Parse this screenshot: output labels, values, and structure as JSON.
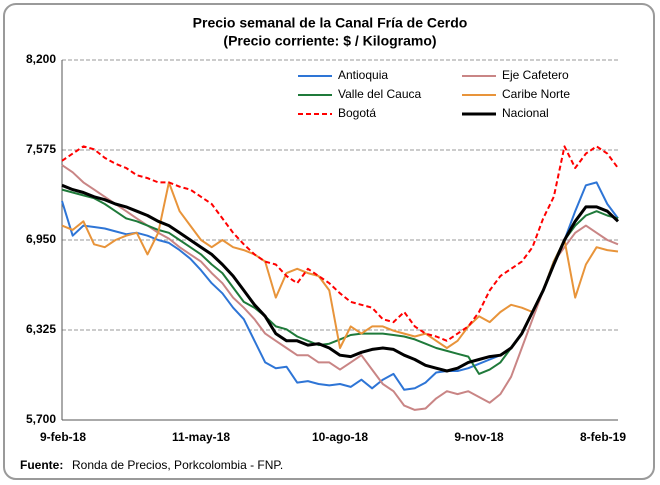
{
  "chart_data": {
    "type": "line",
    "title": "Precio semanal de la Canal Fría de Cerdo",
    "subtitle": "(Precio corriente: $ / Kilogramo)",
    "source_label": "Fuente:",
    "source_text": "Ronda de Precios, Porkcolombia  - FNP.",
    "categories": [
      "9-feb-18",
      null,
      null,
      null,
      null,
      null,
      null,
      null,
      null,
      null,
      null,
      null,
      null,
      "11-may-18",
      null,
      null,
      null,
      null,
      null,
      null,
      null,
      null,
      null,
      null,
      null,
      null,
      "10-ago-18",
      null,
      null,
      null,
      null,
      null,
      null,
      null,
      null,
      null,
      null,
      null,
      null,
      "9-nov-18",
      null,
      null,
      null,
      null,
      null,
      null,
      null,
      null,
      null,
      null,
      null,
      null,
      "8-feb-19"
    ],
    "ylim": [
      5700,
      8200
    ],
    "yticks": [
      {
        "value": 5700,
        "label": "5,700"
      },
      {
        "value": 6325,
        "label": "6,325"
      },
      {
        "value": 6950,
        "label": "6,950"
      },
      {
        "value": 7575,
        "label": "7,575"
      },
      {
        "value": 8200,
        "label": "8,200"
      }
    ],
    "grid": true,
    "series": [
      {
        "name": "Antioquia",
        "color": "#2e75d6",
        "values": [
          7220,
          6980,
          7050,
          7040,
          7030,
          7010,
          6990,
          7000,
          6980,
          6950,
          6930,
          6880,
          6820,
          6740,
          6650,
          6580,
          6480,
          6400,
          6250,
          6100,
          6060,
          6070,
          5960,
          5970,
          5950,
          5940,
          5950,
          5930,
          5980,
          5920,
          5980,
          6020,
          5910,
          5920,
          5960,
          6030,
          6040,
          6040,
          6060,
          6090,
          6120,
          6150,
          6200,
          6300,
          6450,
          6600,
          6800,
          6950,
          7150,
          7330,
          7350,
          7200,
          7100
        ]
      },
      {
        "name": "Eje Cafetero",
        "color": "#c98585",
        "values": [
          7470,
          7420,
          7350,
          7300,
          7250,
          7200,
          7150,
          7100,
          7050,
          7000,
          6960,
          6900,
          6850,
          6800,
          6720,
          6650,
          6550,
          6480,
          6400,
          6300,
          6250,
          6200,
          6150,
          6150,
          6100,
          6100,
          6050,
          6100,
          6150,
          6050,
          5950,
          5900,
          5800,
          5770,
          5780,
          5850,
          5900,
          5880,
          5900,
          5860,
          5820,
          5880,
          6000,
          6200,
          6400,
          6600,
          6800,
          6900,
          7000,
          7050,
          7000,
          6950,
          6920
        ]
      },
      {
        "name": "Valle del Cauca",
        "color": "#1f7a3a",
        "values": [
          7300,
          7280,
          7260,
          7240,
          7200,
          7150,
          7100,
          7080,
          7050,
          7020,
          7000,
          6950,
          6900,
          6850,
          6780,
          6720,
          6620,
          6520,
          6480,
          6420,
          6350,
          6330,
          6280,
          6250,
          6220,
          6230,
          6260,
          6290,
          6300,
          6300,
          6300,
          6290,
          6280,
          6260,
          6230,
          6200,
          6180,
          6160,
          6140,
          6020,
          6050,
          6100,
          6200,
          6300,
          6450,
          6600,
          6800,
          6950,
          7050,
          7120,
          7150,
          7120,
          7100
        ]
      },
      {
        "name": "Caribe Norte",
        "color": "#e8943a",
        "values": [
          7050,
          7020,
          7080,
          6920,
          6900,
          6950,
          6980,
          7000,
          6850,
          7000,
          7350,
          7150,
          7050,
          6950,
          6900,
          6950,
          6900,
          6880,
          6850,
          6800,
          6550,
          6720,
          6750,
          6720,
          6700,
          6600,
          6200,
          6350,
          6300,
          6350,
          6350,
          6320,
          6300,
          6280,
          6300,
          6250,
          6200,
          6250,
          6350,
          6420,
          6380,
          6450,
          6500,
          6480,
          6450,
          6600,
          6800,
          6950,
          6550,
          6780,
          6900,
          6880,
          6870
        ]
      },
      {
        "name": "Bogotá",
        "color": "#ff0000",
        "dashed": true,
        "values": [
          7500,
          7550,
          7600,
          7580,
          7520,
          7480,
          7450,
          7400,
          7380,
          7350,
          7350,
          7320,
          7300,
          7250,
          7200,
          7100,
          7000,
          6920,
          6850,
          6800,
          6780,
          6700,
          6650,
          6750,
          6700,
          6650,
          6580,
          6520,
          6500,
          6480,
          6400,
          6380,
          6450,
          6350,
          6300,
          6280,
          6250,
          6300,
          6350,
          6450,
          6600,
          6700,
          6750,
          6800,
          6900,
          7100,
          7250,
          7600,
          7450,
          7550,
          7600,
          7550,
          7450
        ]
      },
      {
        "name": "Nacional",
        "color": "#000000",
        "values": [
          7330,
          7300,
          7280,
          7250,
          7230,
          7200,
          7180,
          7150,
          7120,
          7080,
          7050,
          7000,
          6950,
          6900,
          6850,
          6780,
          6700,
          6600,
          6500,
          6420,
          6300,
          6250,
          6250,
          6220,
          6230,
          6200,
          6150,
          6140,
          6170,
          6190,
          6200,
          6190,
          6150,
          6120,
          6080,
          6060,
          6040,
          6060,
          6100,
          6120,
          6140,
          6150,
          6200,
          6300,
          6450,
          6600,
          6780,
          6950,
          7080,
          7180,
          7180,
          7150,
          7080
        ]
      }
    ]
  }
}
